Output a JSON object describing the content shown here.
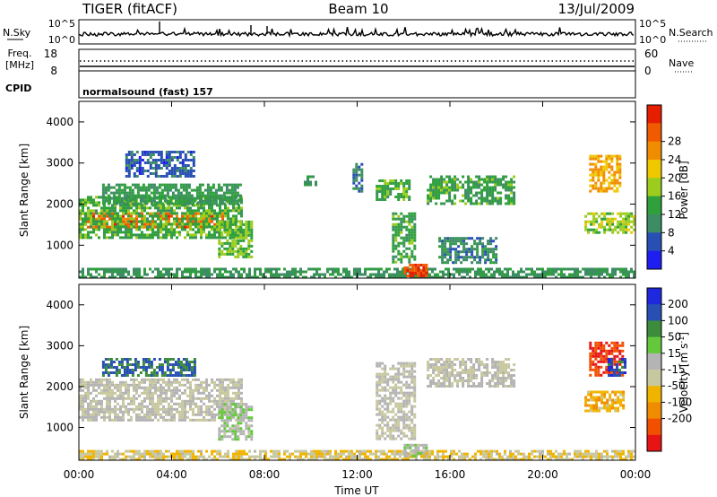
{
  "header": {
    "title": "TIGER (fitACF)",
    "beam": "Beam 10",
    "date": "13/Jul/2009"
  },
  "strip": {
    "nsky_label": "N.Sky",
    "nsky_ticks": [
      "10^5",
      "10^0"
    ],
    "nsearch_label": "N.Search",
    "nsearch_ticks": [
      "10^5",
      "10^0"
    ],
    "freq_label_line1": "Freq.",
    "freq_label_line2": "[MHz]",
    "freq_ticks": [
      "18",
      "8"
    ],
    "nave_label": "Nave",
    "nave_ticks": [
      "60",
      "0"
    ],
    "cpid_label": "CPID",
    "cpid_value": "normalsound (fast) 157"
  },
  "x_axis": {
    "label": "Time UT",
    "ticks": [
      "00:00",
      "04:00",
      "08:00",
      "12:00",
      "16:00",
      "20:00",
      "00:00"
    ]
  },
  "colors": {
    "power": [
      "#1e1ef0",
      "#2850b4",
      "#3c8c64",
      "#2fa03c",
      "#9ccc1e",
      "#f0c800",
      "#f08c00",
      "#f05a00",
      "#e61e00"
    ],
    "velocity": [
      "#1e28dc",
      "#2850b4",
      "#3c8c3c",
      "#64c83c",
      "#b4b4b4",
      "#c8c8a0",
      "#f0b400",
      "#f08c00",
      "#f05000",
      "#e61414"
    ]
  },
  "chart_data": [
    {
      "type": "heatmap",
      "name": "power",
      "ylabel": "Slant Range [km]",
      "xlabel": "",
      "ylim": [
        200,
        4500
      ],
      "xlim_hours": [
        0,
        24
      ],
      "y_ticks": [
        1000,
        2000,
        3000,
        4000
      ],
      "colorbar": {
        "label": "Power [dB]",
        "ticks": [
          "4",
          "8",
          "12",
          "16",
          "20",
          "24",
          "28"
        ],
        "range": [
          0,
          32
        ]
      },
      "regions": [
        {
          "t0": 0.0,
          "t1": 6.3,
          "r0": 1450,
          "r1": 1800,
          "value": 26
        },
        {
          "t0": 0.0,
          "t1": 7.0,
          "r0": 1200,
          "r1": 2200,
          "value": 13
        },
        {
          "t0": 1.0,
          "t1": 7.0,
          "r0": 2000,
          "r1": 2500,
          "value": 11
        },
        {
          "t0": 2.0,
          "t1": 5.0,
          "r0": 2700,
          "r1": 3300,
          "value": 6
        },
        {
          "t0": 6.0,
          "t1": 7.5,
          "r0": 700,
          "r1": 1600,
          "value": 14
        },
        {
          "t0": 0.0,
          "t1": 24.0,
          "r0": 250,
          "r1": 450,
          "value": 10
        },
        {
          "t0": 9.7,
          "t1": 10.2,
          "r0": 2500,
          "r1": 2700,
          "value": 10
        },
        {
          "t0": 11.8,
          "t1": 12.2,
          "r0": 2300,
          "r1": 3000,
          "value": 8
        },
        {
          "t0": 12.8,
          "t1": 14.2,
          "r0": 2100,
          "r1": 2600,
          "value": 13
        },
        {
          "t0": 13.5,
          "t1": 14.5,
          "r0": 600,
          "r1": 1800,
          "value": 12
        },
        {
          "t0": 14.0,
          "t1": 15.0,
          "r0": 250,
          "r1": 550,
          "value": 28
        },
        {
          "t0": 15.0,
          "t1": 18.8,
          "r0": 2000,
          "r1": 2700,
          "value": 12
        },
        {
          "t0": 15.5,
          "t1": 18.0,
          "r0": 600,
          "r1": 1200,
          "value": 9
        },
        {
          "t0": 21.8,
          "t1": 24.0,
          "r0": 1300,
          "r1": 1800,
          "value": 16
        },
        {
          "t0": 22.0,
          "t1": 23.3,
          "r0": 2300,
          "r1": 3200,
          "value": 22
        }
      ]
    },
    {
      "type": "heatmap",
      "name": "velocity",
      "ylabel": "Slant Range [km]",
      "xlabel": "Time UT",
      "ylim": [
        200,
        4500
      ],
      "xlim_hours": [
        0,
        24
      ],
      "y_ticks": [
        1000,
        2000,
        3000,
        4000
      ],
      "colorbar": {
        "label": "Velocity [m s^-1]",
        "ticks": [
          "200",
          "100",
          "50",
          "15",
          "-15",
          "-50",
          "-100",
          "-200"
        ],
        "range": [
          -250,
          250
        ]
      },
      "regions": [
        {
          "t0": 0.0,
          "t1": 7.0,
          "r0": 1200,
          "r1": 2200,
          "value": 0
        },
        {
          "t0": 1.0,
          "t1": 5.0,
          "r0": 2300,
          "r1": 2700,
          "value": 150
        },
        {
          "t0": 6.0,
          "t1": 7.5,
          "r0": 700,
          "r1": 1600,
          "value": 40
        },
        {
          "t0": 0.0,
          "t1": 24.0,
          "r0": 250,
          "r1": 450,
          "value": -40
        },
        {
          "t0": 12.8,
          "t1": 14.5,
          "r0": 700,
          "r1": 2600,
          "value": 0
        },
        {
          "t0": 14.0,
          "t1": 15.0,
          "r0": 300,
          "r1": 600,
          "value": 40
        },
        {
          "t0": 15.0,
          "t1": 18.8,
          "r0": 2000,
          "r1": 2700,
          "value": 0
        },
        {
          "t0": 21.8,
          "t1": 23.5,
          "r0": 1400,
          "r1": 1900,
          "value": -80
        },
        {
          "t0": 22.0,
          "t1": 23.5,
          "r0": 2300,
          "r1": 3100,
          "value": -200
        },
        {
          "t0": 22.8,
          "t1": 23.5,
          "r0": 2300,
          "r1": 2700,
          "value": 180
        }
      ]
    }
  ]
}
